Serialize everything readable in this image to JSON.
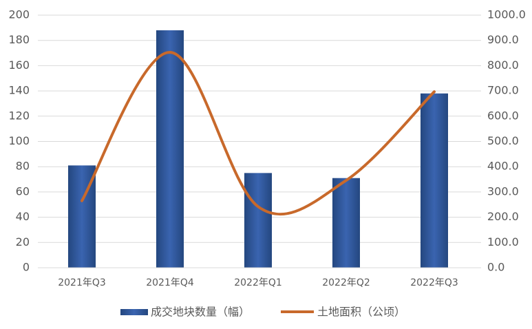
{
  "chart_data": {
    "type": "bar",
    "categories": [
      "2021年Q3",
      "2021年Q4",
      "2022年Q1",
      "2022年Q2",
      "2022年Q3"
    ],
    "series": [
      {
        "name": "成交地块数量（幅）",
        "type": "bar",
        "color": "#2f5597",
        "values": [
          81,
          188,
          75,
          71,
          138
        ]
      },
      {
        "name": "土地面积（公顷）",
        "type": "line",
        "axis": "y2",
        "smooth": true,
        "color": "#c8692b",
        "values": [
          265,
          853,
          242,
          346,
          697
        ]
      }
    ],
    "ylim": [
      0,
      200
    ],
    "yticks": [
      0,
      20,
      40,
      60,
      80,
      100,
      120,
      140,
      160,
      180,
      200
    ],
    "y2lim": [
      0,
      1000
    ],
    "y2ticks": [
      {
        "value": 0,
        "label": "0.0"
      },
      {
        "value": 100,
        "label": "100.0"
      },
      {
        "value": 200,
        "label": "200.0"
      },
      {
        "value": 300,
        "label": "300.0"
      },
      {
        "value": 400,
        "label": "400.0"
      },
      {
        "value": 500,
        "label": "500.0"
      },
      {
        "value": 600,
        "label": "600.0"
      },
      {
        "value": 700,
        "label": "700.0"
      },
      {
        "value": 800,
        "label": "800.0"
      },
      {
        "value": 900,
        "label": "900.0"
      },
      {
        "value": 1000,
        "label": "1000.0"
      }
    ],
    "grid": true,
    "legend": "bottom"
  }
}
